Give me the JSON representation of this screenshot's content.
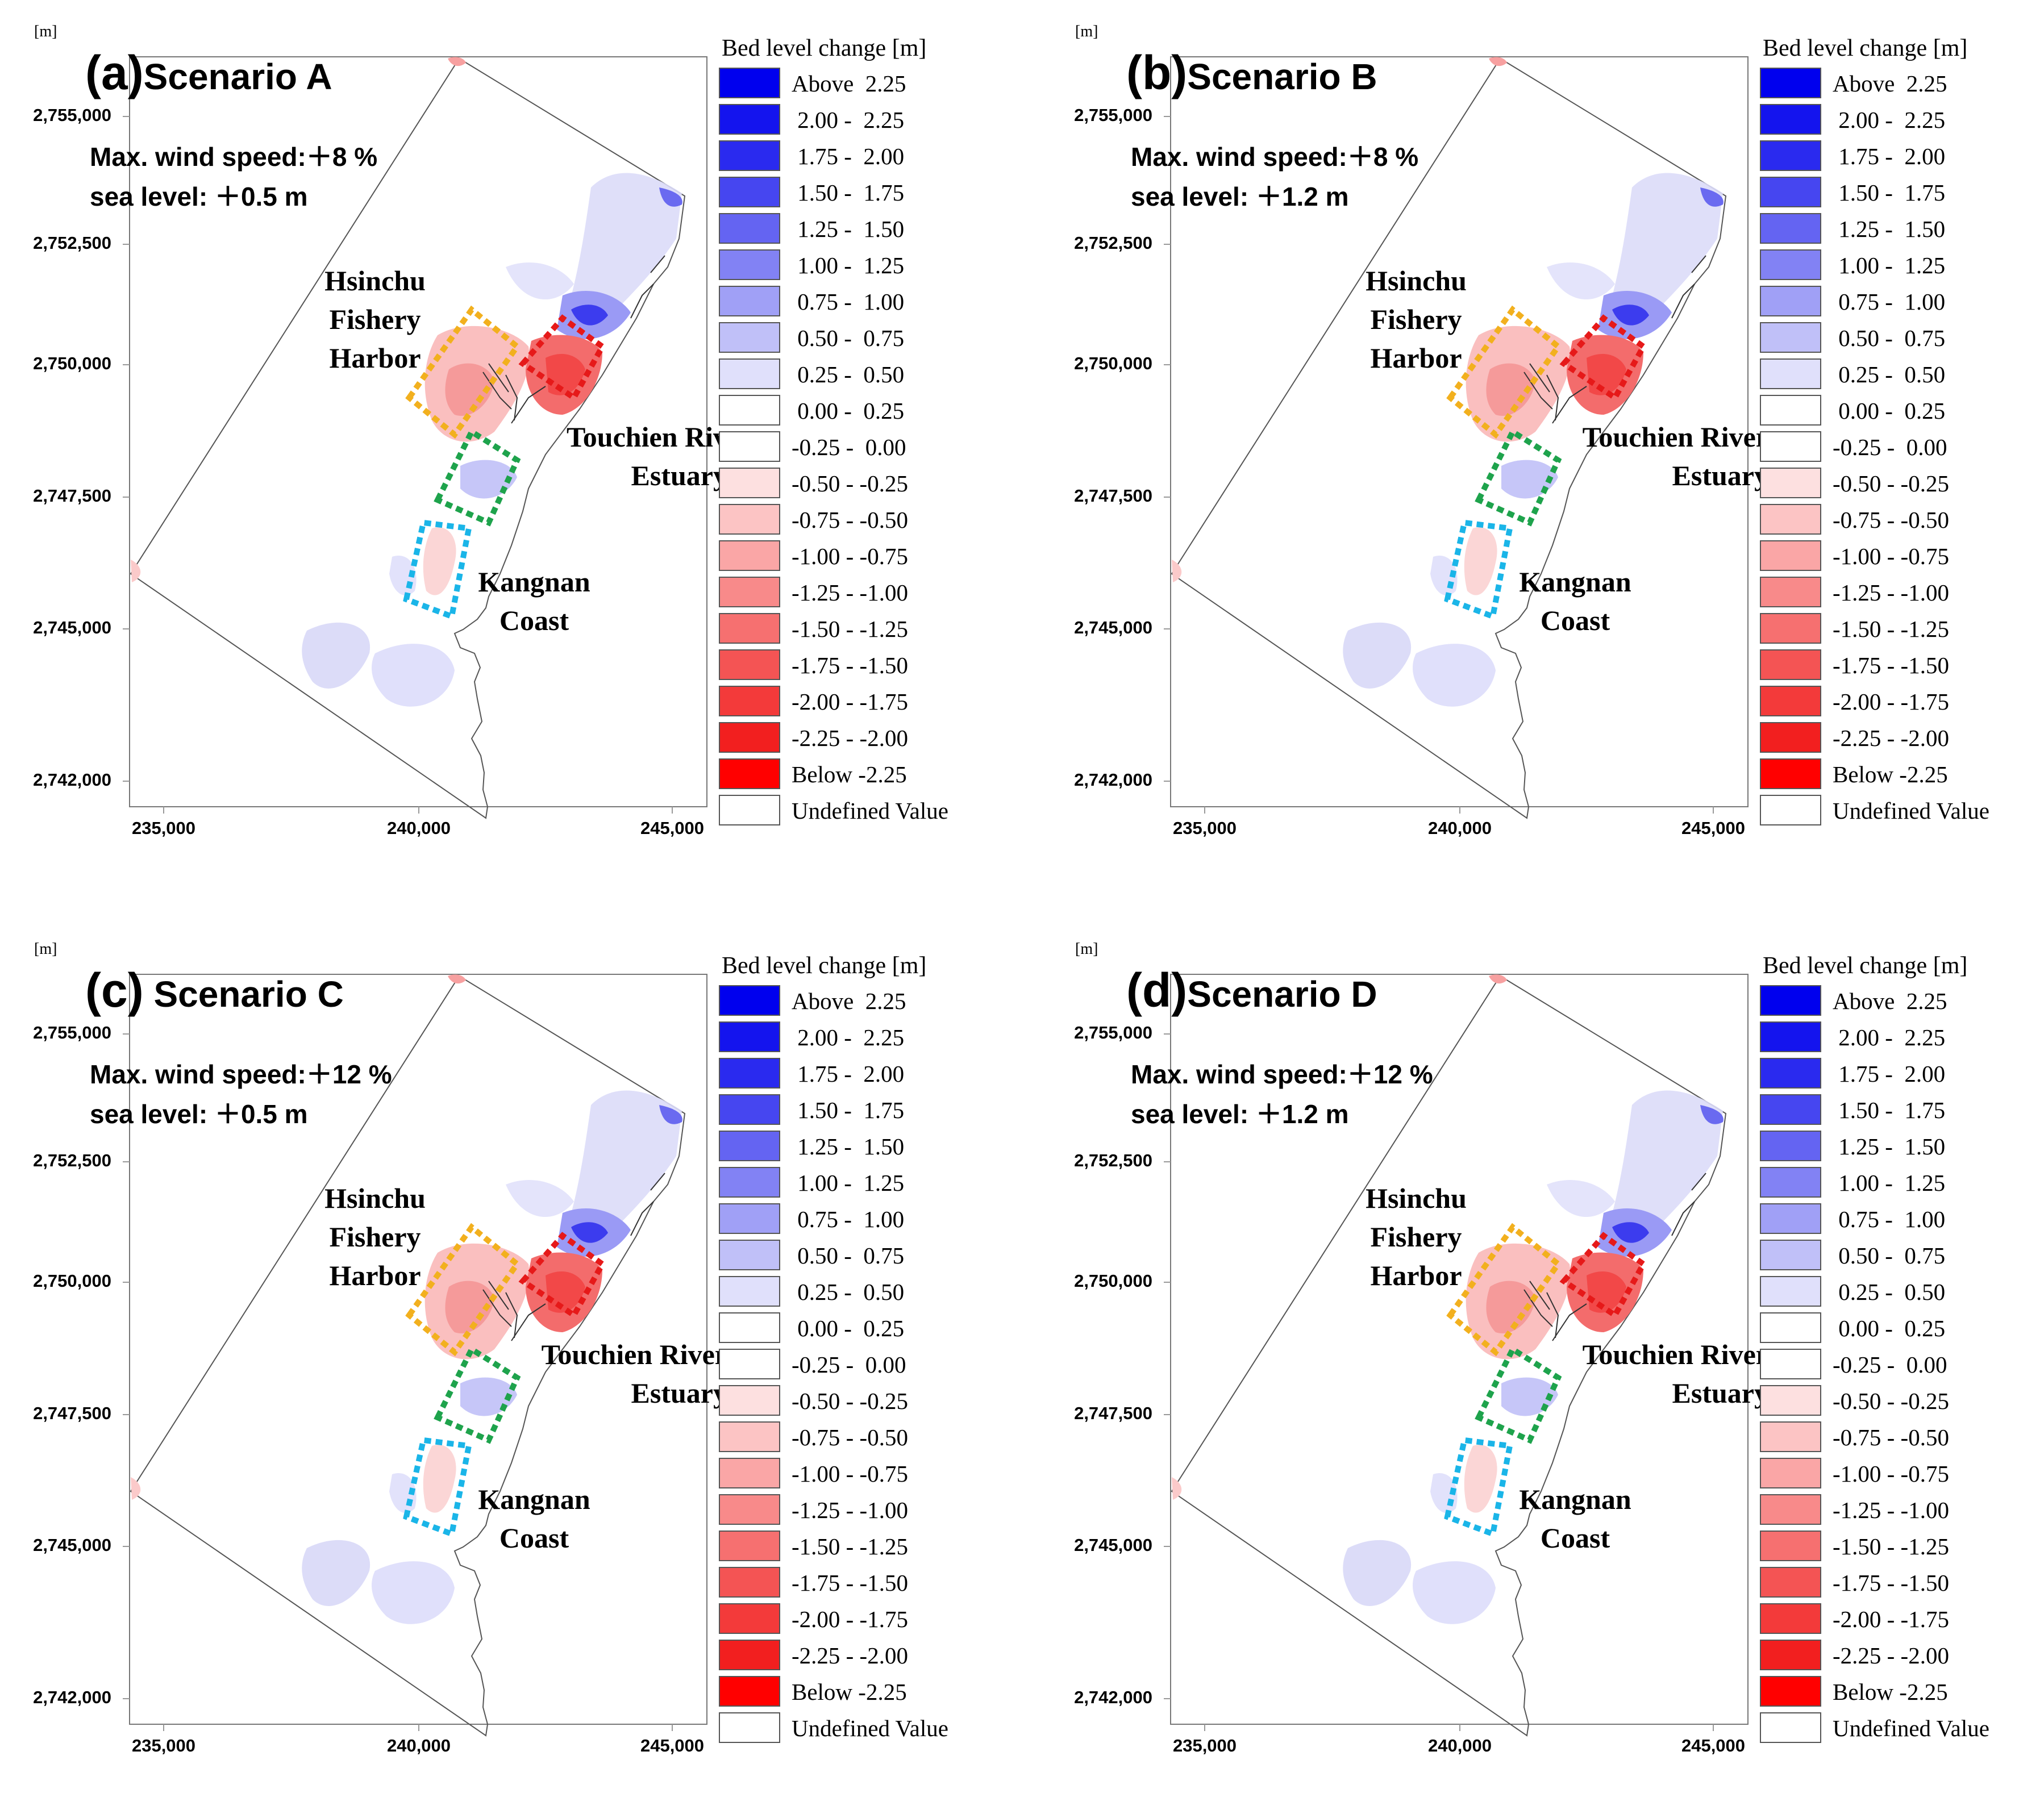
{
  "legend": {
    "title": "Bed level change [m]",
    "items": [
      {
        "label": "Above  2.25",
        "color": "#0000ee"
      },
      {
        "label": " 2.00 -  2.25",
        "color": "#1414ee"
      },
      {
        "label": " 1.75 -  2.00",
        "color": "#2a2aef"
      },
      {
        "label": " 1.50 -  1.75",
        "color": "#4646f0"
      },
      {
        "label": " 1.25 -  1.50",
        "color": "#6464f2"
      },
      {
        "label": " 1.00 -  1.25",
        "color": "#8282f4"
      },
      {
        "label": " 0.75 -  1.00",
        "color": "#a0a0f6"
      },
      {
        "label": " 0.50 -  0.75",
        "color": "#c0c0f8"
      },
      {
        "label": " 0.25 -  0.50",
        "color": "#e0e0fb"
      },
      {
        "label": " 0.00 -  0.25",
        "color": "#ffffff"
      },
      {
        "label": "-0.25 -  0.00",
        "color": "#ffffff"
      },
      {
        "label": "-0.50 - -0.25",
        "color": "#fde0e0"
      },
      {
        "label": "-0.75 - -0.50",
        "color": "#fcc4c4"
      },
      {
        "label": "-1.00 - -0.75",
        "color": "#faa6a6"
      },
      {
        "label": "-1.25 - -1.00",
        "color": "#f88a8a"
      },
      {
        "label": "-1.50 - -1.25",
        "color": "#f67070"
      },
      {
        "label": "-1.75 - -1.50",
        "color": "#f45454"
      },
      {
        "label": "-2.00 - -1.75",
        "color": "#f33a3a"
      },
      {
        "label": "-2.25 - -2.00",
        "color": "#f21f1f"
      },
      {
        "label": "Below -2.25",
        "color": "#ff0000"
      },
      {
        "label": "Undefined Value",
        "color": "#ffffff"
      }
    ]
  },
  "axes": {
    "unit": "[m]",
    "y_ticks": [
      "2,755,000",
      "2,752,500",
      "2,750,000",
      "2,747,500",
      "2,745,000",
      "2,742,000"
    ],
    "x_ticks": [
      "235,000",
      "240,000",
      "245,000"
    ]
  },
  "places": {
    "harbor": "Hsinchu\nFishery\nHarbor",
    "estuary": "Touchien River\nEstuary",
    "kangnan": "Kangnan\nCoast"
  },
  "panels": [
    {
      "letter": "(a)",
      "name": "Scenario A",
      "wind": "Max. wind speed:＋8 %",
      "sea": "sea level:  ＋0.5 m",
      "estuary": "Touchien Riv\nEstuary"
    },
    {
      "letter": "(b)",
      "name": "Scenario B",
      "wind": "Max. wind speed:＋8 %",
      "sea": "sea level:  ＋1.2 m",
      "estuary": "Touchien River\nEstuary"
    },
    {
      "letter": "(c)",
      "name": " Scenario C",
      "wind": "Max. wind speed:＋12 %",
      "sea": "sea level:  ＋0.5 m",
      "estuary": "Touchien River\nEstuary"
    },
    {
      "letter": "(d)",
      "name": "Scenario D",
      "wind": "Max. wind speed:＋12 %",
      "sea": "sea level:  ＋1.2 m",
      "estuary": "Touchien River\nEstuary"
    }
  ]
}
